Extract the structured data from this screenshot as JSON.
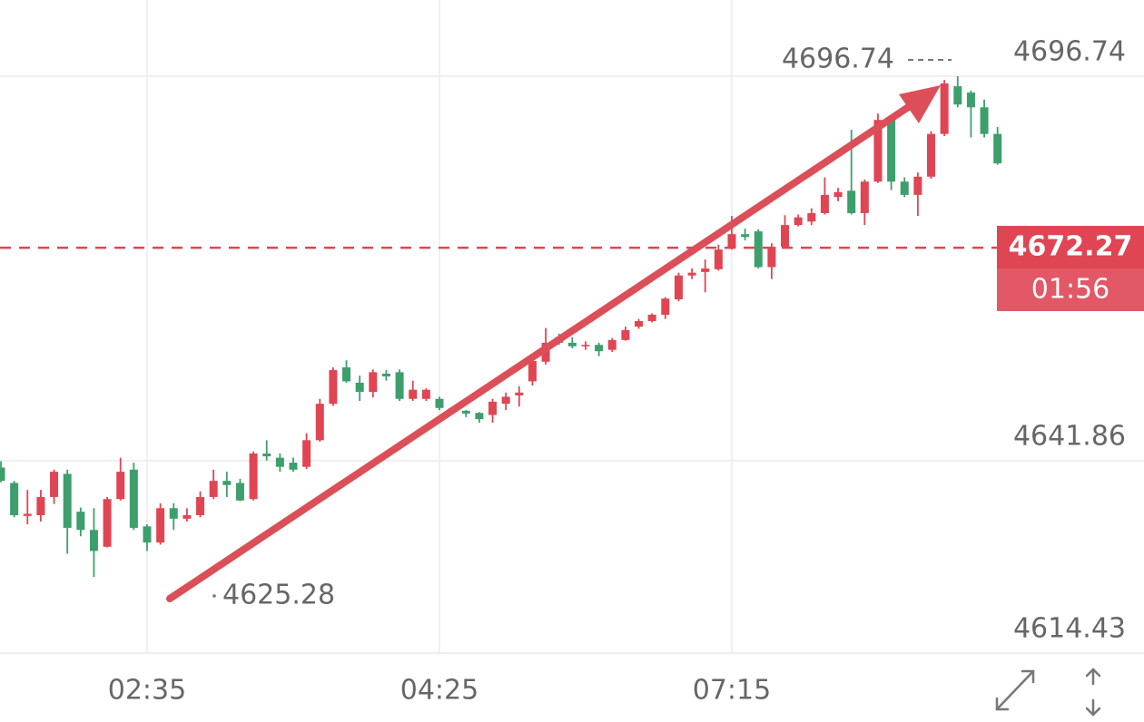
{
  "chart_data": {
    "type": "candlestick",
    "categories": [
      null,
      null,
      null,
      null,
      null,
      null,
      null,
      null,
      null,
      null,
      null,
      "02:35",
      null,
      null,
      null,
      null,
      null,
      null,
      null,
      null,
      null,
      null,
      null,
      null,
      null,
      null,
      null,
      null,
      null,
      null,
      null,
      null,
      null,
      "04:25",
      null,
      null,
      null,
      null,
      null,
      null,
      null,
      null,
      null,
      null,
      null,
      null,
      null,
      null,
      null,
      null,
      null,
      null,
      null,
      null,
      null,
      "07:15",
      null,
      null,
      null,
      null,
      null,
      null,
      null,
      null,
      null,
      null,
      null,
      null,
      null,
      null,
      null,
      null,
      null,
      null,
      null,
      null
    ],
    "open": [
      4640.9,
      4638.7,
      4634.0,
      4634.1,
      4636.7,
      4640.0,
      4634.6,
      4632.0,
      4629.6,
      4636.4,
      4640.6,
      4632.5,
      4630.2,
      4635.1,
      4633.6,
      4634.1,
      4636.7,
      4639.0,
      4638.7,
      4636.4,
      4642.9,
      4642.3,
      4641.6,
      4641.0,
      4644.8,
      4650.0,
      4655.2,
      4653.0,
      4651.7,
      4654.3,
      4654.5,
      4650.7,
      4650.7,
      4650.7,
      4649.4,
      4649.0,
      4648.7,
      4648.4,
      4650.0,
      4651.2,
      4653.2,
      4656.0,
      4659.5,
      4658.7,
      4658.2,
      4658.4,
      4657.7,
      4659.1,
      4661.0,
      4661.8,
      4662.7,
      4664.9,
      4668.3,
      4668.8,
      4669.2,
      4672.2,
      4674.2,
      4674.6,
      4669.5,
      4672.4,
      4675.5,
      4676.0,
      4677.2,
      4679.5,
      4680.4,
      4677.2,
      4681.7,
      4690.5,
      4681.7,
      4679.8,
      4682.4,
      4688.5,
      4695.3,
      4694.4,
      4692.3,
      4688.5
    ],
    "high": [
      4641.8,
      4639.0,
      4637.7,
      4637.7,
      4640.6,
      4640.6,
      4635.2,
      4635.1,
      4636.7,
      4642.3,
      4641.6,
      4632.8,
      4635.8,
      4635.8,
      4635.1,
      4637.5,
      4640.6,
      4640.3,
      4639.3,
      4643.2,
      4644.8,
      4642.9,
      4642.3,
      4645.8,
      4650.7,
      4655.2,
      4656.2,
      4654.0,
      4654.9,
      4654.8,
      4654.9,
      4653.3,
      4652.2,
      4651.0,
      4649.6,
      4649.1,
      4648.8,
      4650.7,
      4651.6,
      4652.5,
      4656.5,
      4660.8,
      4660.0,
      4659.5,
      4658.9,
      4658.7,
      4659.4,
      4661.0,
      4662.1,
      4662.9,
      4665.2,
      4668.7,
      4669.3,
      4670.6,
      4672.7,
      4676.8,
      4675.0,
      4674.9,
      4672.9,
      4676.9,
      4677.0,
      4677.9,
      4682.3,
      4680.8,
      4689.1,
      4682.0,
      4691.4,
      4691.0,
      4682.3,
      4683.0,
      4688.9,
      4696.2,
      4696.74,
      4694.7,
      4693.4,
      4689.5
    ],
    "low": [
      4638.8,
      4633.8,
      4632.8,
      4633.2,
      4635.7,
      4628.6,
      4631.1,
      4625.28,
      4629.5,
      4636.2,
      4632.0,
      4629.0,
      4629.9,
      4632.0,
      4633.2,
      4633.8,
      4636.4,
      4636.7,
      4636.1,
      4636.2,
      4641.9,
      4640.3,
      4640.3,
      4640.7,
      4644.6,
      4649.7,
      4653.0,
      4650.4,
      4650.9,
      4653.3,
      4650.4,
      4650.4,
      4650.4,
      4649.1,
      4648.7,
      4648.1,
      4647.3,
      4647.3,
      4649.1,
      4649.6,
      4652.6,
      4655.6,
      4658.4,
      4657.9,
      4657.7,
      4656.8,
      4657.4,
      4659.0,
      4660.7,
      4661.6,
      4662.1,
      4664.6,
      4667.8,
      4665.9,
      4669.0,
      4672.0,
      4673.3,
      4669.3,
      4667.8,
      4672.1,
      4675.3,
      4675.5,
      4677.0,
      4678.9,
      4677.0,
      4675.5,
      4681.5,
      4680.5,
      4679.5,
      4676.8,
      4682.1,
      4688.2,
      4692.3,
      4688.0,
      4688.0,
      4684.1
    ],
    "close": [
      4639.0,
      4634.1,
      4634.3,
      4636.7,
      4640.3,
      4632.3,
      4632.0,
      4629.0,
      4636.4,
      4640.3,
      4632.3,
      4630.2,
      4635.1,
      4633.6,
      4634.1,
      4636.7,
      4639.0,
      4638.4,
      4636.2,
      4642.9,
      4642.5,
      4641.0,
      4640.6,
      4644.8,
      4650.0,
      4654.8,
      4653.2,
      4651.7,
      4654.5,
      4653.9,
      4650.7,
      4652.0,
      4652.0,
      4649.4,
      4649.0,
      4648.6,
      4647.8,
      4650.3,
      4651.0,
      4651.6,
      4656.1,
      4658.7,
      4658.7,
      4658.2,
      4658.4,
      4657.5,
      4659.1,
      4660.5,
      4661.8,
      4662.7,
      4665.0,
      4668.3,
      4668.7,
      4669.3,
      4672.0,
      4674.2,
      4673.8,
      4669.5,
      4672.4,
      4675.5,
      4676.6,
      4677.2,
      4679.8,
      4680.2,
      4677.2,
      4681.7,
      4690.5,
      4681.7,
      4679.8,
      4682.4,
      4688.5,
      4695.7,
      4692.7,
      4692.3,
      4688.5,
      4684.3
    ],
    "up_color": "#e04553",
    "down_color": "#3d9f6c",
    "ylim": [
      4614.43,
      4707.61
    ],
    "yticks": [
      4614.43,
      4641.86,
      4696.74
    ],
    "grid": true,
    "last_price": 4672.27,
    "countdown": "01:56"
  }
}
